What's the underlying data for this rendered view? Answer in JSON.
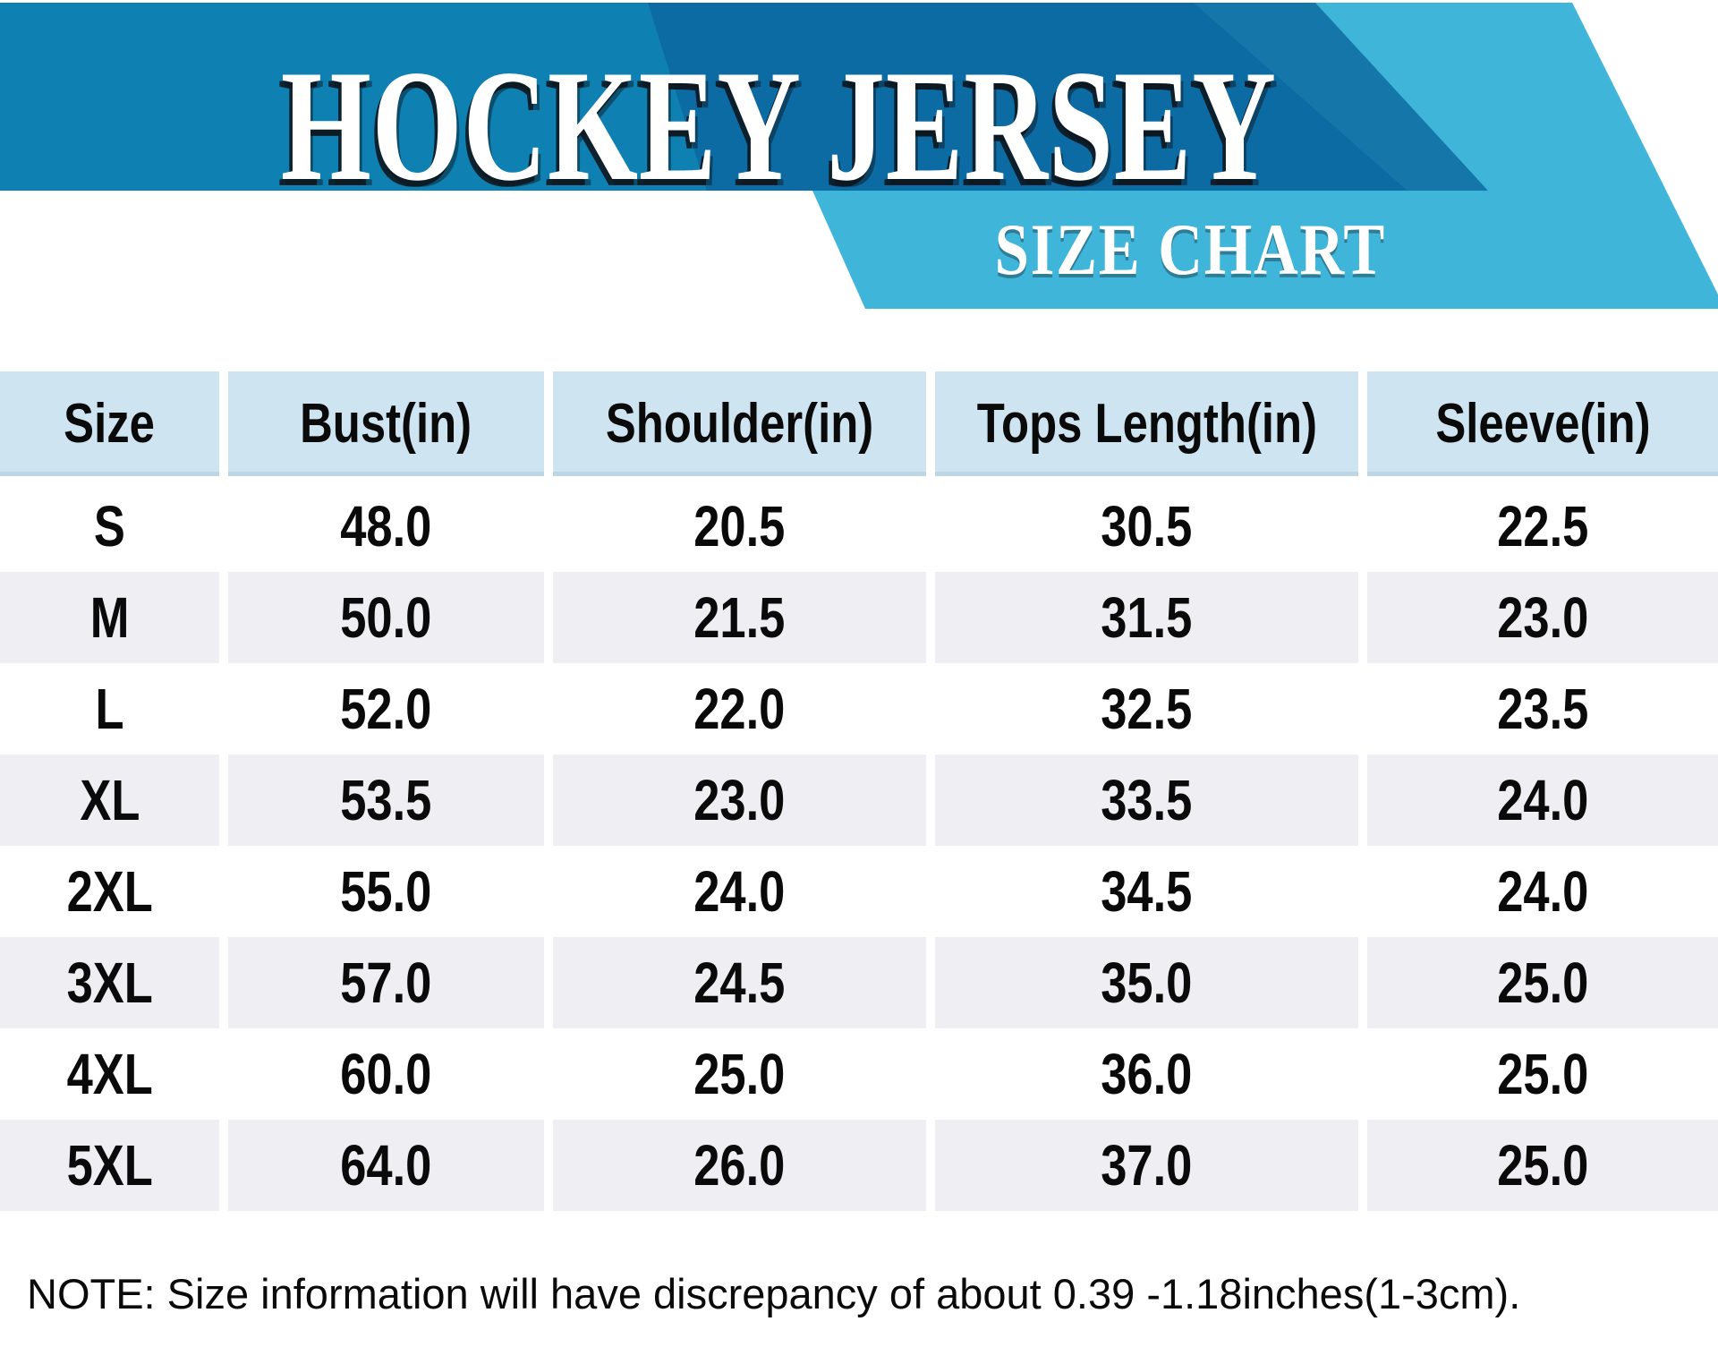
{
  "header": {
    "title": "HOCKEY JERSEY",
    "subtitle": "SIZE CHART"
  },
  "table": {
    "columns": [
      "Size",
      "Bust(in)",
      "Shoulder(in)",
      "Tops Length(in)",
      "Sleeve(in)"
    ],
    "rows": [
      {
        "size": "S",
        "bust": "48.0",
        "shoulder": "20.5",
        "tops_length": "30.5",
        "sleeve": "22.5"
      },
      {
        "size": "M",
        "bust": "50.0",
        "shoulder": "21.5",
        "tops_length": "31.5",
        "sleeve": "23.0"
      },
      {
        "size": "L",
        "bust": "52.0",
        "shoulder": "22.0",
        "tops_length": "32.5",
        "sleeve": "23.5"
      },
      {
        "size": "XL",
        "bust": "53.5",
        "shoulder": "23.0",
        "tops_length": "33.5",
        "sleeve": "24.0"
      },
      {
        "size": "2XL",
        "bust": "55.0",
        "shoulder": "24.0",
        "tops_length": "34.5",
        "sleeve": "24.0"
      },
      {
        "size": "3XL",
        "bust": "57.0",
        "shoulder": "24.5",
        "tops_length": "35.0",
        "sleeve": "25.0"
      },
      {
        "size": "4XL",
        "bust": "60.0",
        "shoulder": "25.0",
        "tops_length": "36.0",
        "sleeve": "25.0"
      },
      {
        "size": "5XL",
        "bust": "64.0",
        "shoulder": "26.0",
        "tops_length": "37.0",
        "sleeve": "25.0"
      }
    ]
  },
  "note": {
    "text": "NOTE: Size information will have discrepancy of about 0.39 -1.18inches(1-3cm)."
  },
  "colors": {
    "banner_base_blue": "#0E80B1",
    "banner_dark_blue": "#0C6BA3",
    "banner_stripe_blue": "#1577A9",
    "banner_cyan": "#3FB5D9",
    "table_header_blue": "#CEE4F1",
    "table_stripe_gray": "#EFEEF2",
    "text_black": "#0a0a0a",
    "background_white": "#ffffff"
  }
}
